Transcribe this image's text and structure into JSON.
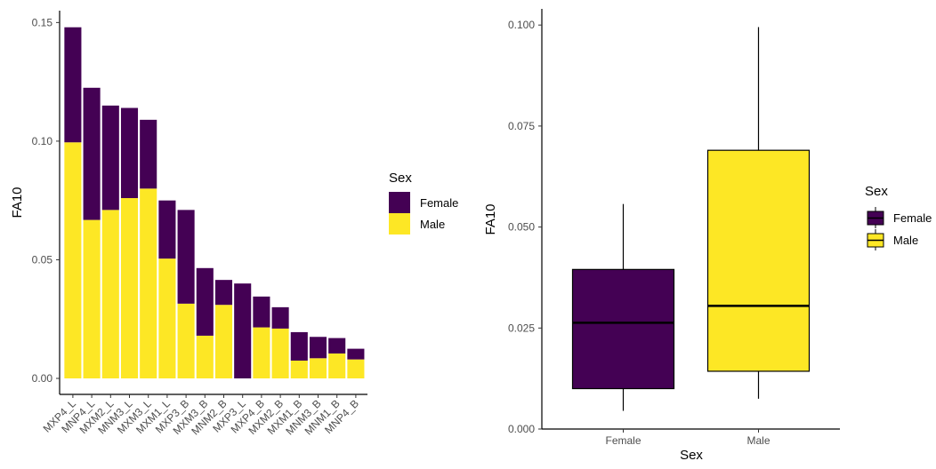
{
  "colors": {
    "female": "#440154",
    "male": "#FDE725"
  },
  "chart_data": [
    {
      "type": "bar",
      "stacked": true,
      "ylabel": "FA10",
      "xlabel": "",
      "ylim": [
        0,
        0.155
      ],
      "yticks": [
        "0.00",
        "0.05",
        "0.10",
        "0.15"
      ],
      "categories": [
        "MXP4_L",
        "MNP4_L",
        "MXM2_L",
        "MNM3_L",
        "MXM3_L",
        "MXM1_L",
        "MXP3_B",
        "MXM3_B",
        "MNM2_B",
        "MXP3_L",
        "MXP4_B",
        "MXM2_B",
        "MXM1_B",
        "MNM3_B",
        "MNM1_B",
        "MNP4_B"
      ],
      "series": [
        {
          "name": "Male",
          "values": [
            0.0995,
            0.0668,
            0.071,
            0.076,
            0.08,
            0.0505,
            0.0315,
            0.018,
            0.031,
            0.0,
            0.0215,
            0.021,
            0.0075,
            0.0085,
            0.0105,
            0.008
          ]
        },
        {
          "name": "Female",
          "values": [
            0.0485,
            0.0557,
            0.044,
            0.038,
            0.029,
            0.0245,
            0.0395,
            0.0285,
            0.0105,
            0.04,
            0.013,
            0.009,
            0.012,
            0.009,
            0.0065,
            0.0045
          ]
        }
      ],
      "legend": {
        "title": "Sex",
        "placement": "right",
        "entries": [
          "Female",
          "Male"
        ]
      },
      "grid": false
    },
    {
      "type": "boxplot",
      "xlabel": "Sex",
      "ylabel": "FA10",
      "ylim": [
        0,
        0.104
      ],
      "yticks": [
        "0.000",
        "0.025",
        "0.050",
        "0.075",
        "0.100"
      ],
      "categories": [
        "Female",
        "Male"
      ],
      "boxes": [
        {
          "name": "Female",
          "min": 0.0045,
          "q1": 0.01,
          "median": 0.0263,
          "q3": 0.0395,
          "max": 0.0557
        },
        {
          "name": "Male",
          "min": 0.0075,
          "q1": 0.0143,
          "median": 0.0305,
          "q3": 0.069,
          "max": 0.0995
        }
      ],
      "legend": {
        "title": "Sex",
        "placement": "right",
        "entries": [
          "Female",
          "Male"
        ]
      },
      "grid": false
    }
  ]
}
